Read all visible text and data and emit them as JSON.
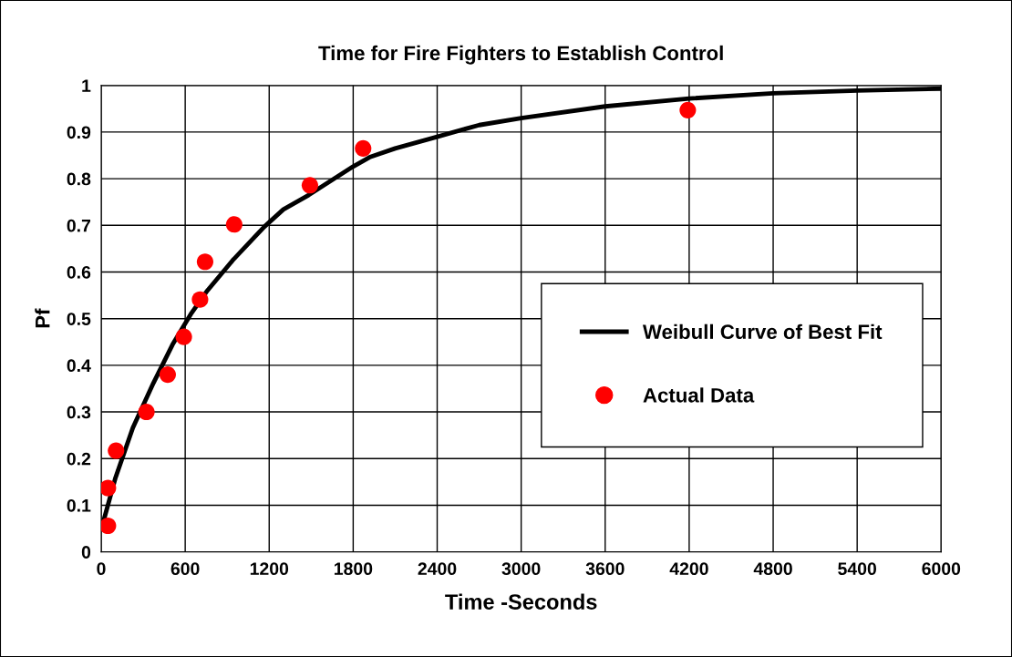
{
  "chart_data": {
    "type": "scatter",
    "title": "Time for Fire Fighters to Establish Control",
    "xlabel": "Time -Seconds",
    "ylabel": "Pf",
    "xlim": [
      0,
      6000
    ],
    "xticks": [
      0,
      600,
      1200,
      1800,
      2400,
      3000,
      3600,
      4200,
      4800,
      5400,
      6000
    ],
    "ylim": [
      0,
      1
    ],
    "yticks": [
      0,
      0.1,
      0.2,
      0.3,
      0.4,
      0.5,
      0.6,
      0.7,
      0.8,
      0.9,
      1
    ],
    "grid": true,
    "legend": "right",
    "series": [
      {
        "name": "Weibull Curve of Best Fit",
        "type": "line",
        "color": "#000000",
        "marker": "none",
        "line_style": "solid",
        "x": [
          11,
          100,
          226,
          373,
          509,
          645,
          758,
          939,
          1165,
          1301,
          1482,
          1799,
          1917,
          2100,
          2400,
          2700,
          3000,
          3600,
          4200,
          4800,
          5400,
          6000
        ],
        "values": [
          0.06,
          0.157,
          0.266,
          0.362,
          0.444,
          0.512,
          0.56,
          0.625,
          0.697,
          0.734,
          0.765,
          0.826,
          0.846,
          0.865,
          0.89,
          0.915,
          0.93,
          0.955,
          0.972,
          0.983,
          0.989,
          0.993
        ]
      },
      {
        "name": "Actual Data",
        "color": "#ff0000",
        "marker": "circle",
        "x": [
          48,
          48,
          106,
          323,
          475,
          590,
          706,
          742,
          950,
          1491,
          1871,
          4190
        ],
        "values": [
          0.056,
          0.137,
          0.217,
          0.3,
          0.38,
          0.461,
          0.541,
          0.622,
          0.702,
          0.786,
          0.865,
          0.947
        ]
      }
    ]
  }
}
